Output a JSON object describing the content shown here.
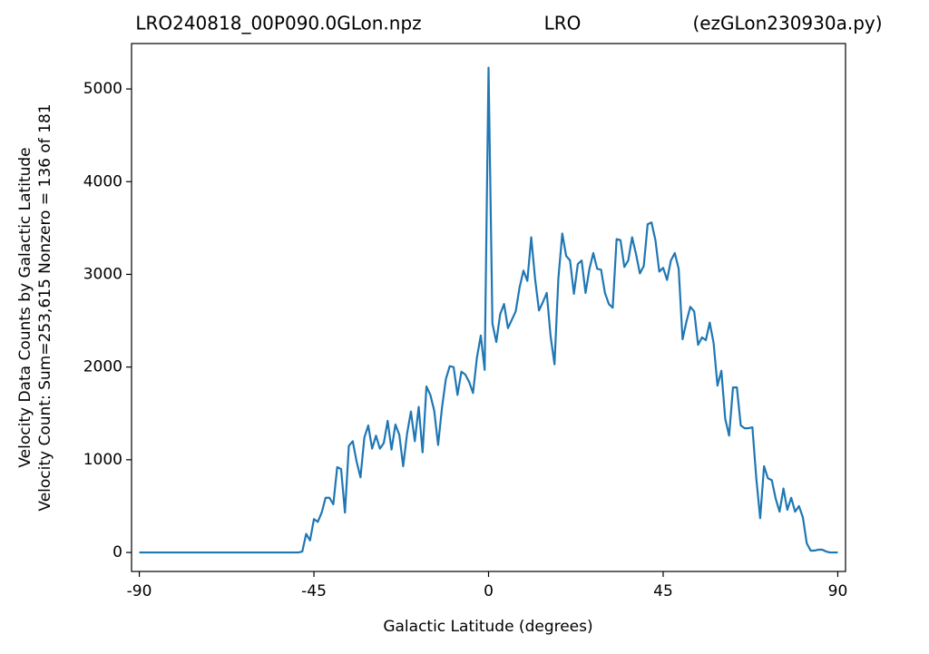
{
  "chart_data": {
    "type": "line",
    "title": [
      "LRO240818_00P090.0GLon.npz",
      "LRO",
      "(ezGLon230930a.py)"
    ],
    "xlabel": "Galactic Latitude (degrees)",
    "ylabel": [
      "Velocity Data Counts by Galactic Latitude",
      "Velocity Count: Sum=253,615 Nonzero = 136 of 181"
    ],
    "x": [
      -90,
      -89,
      -88,
      -87,
      -86,
      -85,
      -84,
      -83,
      -82,
      -81,
      -80,
      -79,
      -78,
      -77,
      -76,
      -75,
      -74,
      -73,
      -72,
      -71,
      -70,
      -69,
      -68,
      -67,
      -66,
      -65,
      -64,
      -63,
      -62,
      -61,
      -60,
      -59,
      -58,
      -57,
      -56,
      -55,
      -54,
      -53,
      -52,
      -51,
      -50,
      -49,
      -48,
      -47,
      -46,
      -45,
      -44,
      -43,
      -42,
      -41,
      -40,
      -39,
      -38,
      -37,
      -36,
      -35,
      -34,
      -33,
      -32,
      -31,
      -30,
      -29,
      -28,
      -27,
      -26,
      -25,
      -24,
      -23,
      -22,
      -21,
      -20,
      -19,
      -18,
      -17,
      -16,
      -15,
      -14,
      -13,
      -12,
      -11,
      -10,
      -9,
      -8,
      -7,
      -6,
      -5,
      -4,
      -3,
      -2,
      -1,
      0,
      1,
      2,
      3,
      4,
      5,
      6,
      7,
      8,
      9,
      10,
      11,
      12,
      13,
      14,
      15,
      16,
      17,
      18,
      19,
      20,
      21,
      22,
      23,
      24,
      25,
      26,
      27,
      28,
      29,
      30,
      31,
      32,
      33,
      34,
      35,
      36,
      37,
      38,
      39,
      40,
      41,
      42,
      43,
      44,
      45,
      46,
      47,
      48,
      49,
      50,
      51,
      52,
      53,
      54,
      55,
      56,
      57,
      58,
      59,
      60,
      61,
      62,
      63,
      64,
      65,
      66,
      67,
      68,
      69,
      70,
      71,
      72,
      73,
      74,
      75,
      76,
      77,
      78,
      79,
      80,
      81,
      82,
      83,
      84,
      85,
      86,
      87,
      88,
      89,
      90
    ],
    "series": [
      {
        "color": "#1f77b4",
        "values": [
          0,
          0,
          0,
          0,
          0,
          0,
          0,
          0,
          0,
          0,
          0,
          0,
          0,
          0,
          0,
          0,
          0,
          0,
          0,
          0,
          0,
          0,
          0,
          0,
          0,
          0,
          0,
          0,
          0,
          0,
          0,
          0,
          0,
          0,
          0,
          0,
          0,
          0,
          0,
          0,
          0,
          0,
          10,
          200,
          130,
          360,
          330,
          430,
          590,
          590,
          520,
          920,
          900,
          430,
          1150,
          1200,
          980,
          810,
          1240,
          1370,
          1120,
          1260,
          1120,
          1180,
          1420,
          1110,
          1380,
          1270,
          930,
          1280,
          1520,
          1200,
          1570,
          1080,
          1790,
          1700,
          1530,
          1160,
          1560,
          1870,
          2010,
          2000,
          1700,
          1950,
          1920,
          1840,
          1720,
          2100,
          2340,
          1970,
          5230,
          2470,
          2270,
          2570,
          2680,
          2420,
          2510,
          2600,
          2860,
          3040,
          2930,
          3400,
          2950,
          2610,
          2700,
          2800,
          2330,
          2030,
          2960,
          3440,
          3200,
          3150,
          2790,
          3110,
          3150,
          2800,
          3060,
          3230,
          3060,
          3050,
          2800,
          2680,
          2640,
          3380,
          3370,
          3080,
          3150,
          3400,
          3220,
          3010,
          3090,
          3540,
          3560,
          3370,
          3030,
          3070,
          2940,
          3150,
          3230,
          3060,
          2300,
          2490,
          2650,
          2600,
          2240,
          2320,
          2290,
          2480,
          2260,
          1800,
          1960,
          1440,
          1260,
          1780,
          1780,
          1370,
          1340,
          1340,
          1350,
          800,
          370,
          930,
          800,
          780,
          580,
          440,
          690,
          460,
          590,
          440,
          500,
          380,
          100,
          20,
          20,
          30,
          30,
          10,
          0,
          0,
          0
        ]
      }
    ],
    "xlim": [
      -92,
      92
    ],
    "xticks": [
      -90,
      -45,
      0,
      45,
      90
    ],
    "ylim": [
      -205,
      5490
    ],
    "yticks": [
      0,
      1000,
      2000,
      3000,
      4000,
      5000
    ]
  }
}
